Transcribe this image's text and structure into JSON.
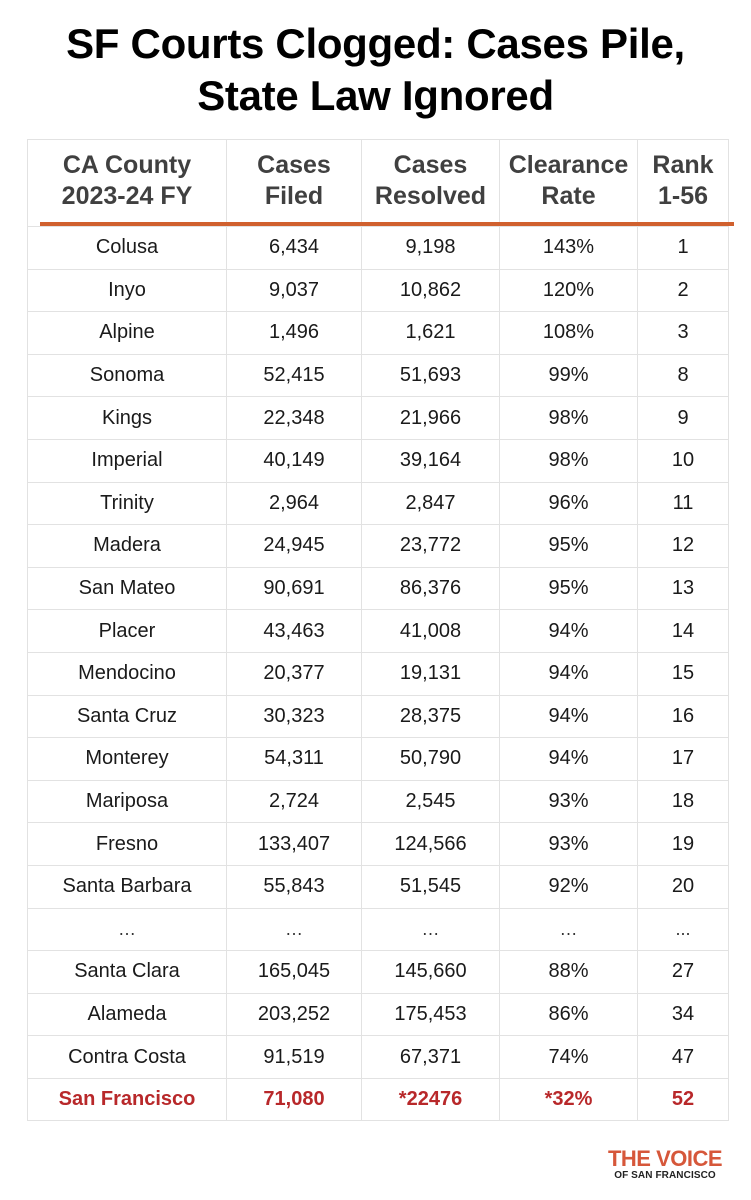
{
  "title": {
    "line1": "SF Courts Clogged: Cases Pile,",
    "line2": "State Law Ignored"
  },
  "table": {
    "headers": [
      {
        "line1": "CA County",
        "line2": "2023-24 FY"
      },
      {
        "line1": "Cases",
        "line2": "Filed"
      },
      {
        "line1": "Cases",
        "line2": "Resolved"
      },
      {
        "line1": "Clearance",
        "line2": "Rate"
      },
      {
        "line1": "Rank",
        "line2": "1-56"
      }
    ],
    "rows": [
      [
        "Colusa",
        "6,434",
        "9,198",
        "143%",
        "1"
      ],
      [
        "Inyo",
        "9,037",
        "10,862",
        "120%",
        "2"
      ],
      [
        "Alpine",
        "1,496",
        "1,621",
        "108%",
        "3"
      ],
      [
        "Sonoma",
        "52,415",
        "51,693",
        "99%",
        "8"
      ],
      [
        "Kings",
        "22,348",
        "21,966",
        "98%",
        "9"
      ],
      [
        "Imperial",
        "40,149",
        "39,164",
        "98%",
        "10"
      ],
      [
        "Trinity",
        "2,964",
        "2,847",
        "96%",
        "11"
      ],
      [
        "Madera",
        "24,945",
        "23,772",
        "95%",
        "12"
      ],
      [
        "San Mateo",
        "90,691",
        "86,376",
        "95%",
        "13"
      ],
      [
        "Placer",
        "43,463",
        "41,008",
        "94%",
        "14"
      ],
      [
        "Mendocino",
        "20,377",
        "19,131",
        "94%",
        "15"
      ],
      [
        "Santa Cruz",
        "30,323",
        "28,375",
        "94%",
        "16"
      ],
      [
        "Monterey",
        "54,311",
        "50,790",
        "94%",
        "17"
      ],
      [
        "Mariposa",
        "2,724",
        "2,545",
        "93%",
        "18"
      ],
      [
        "Fresno",
        "133,407",
        "124,566",
        "93%",
        "19"
      ],
      [
        "Santa Barbara",
        "55,843",
        "51,545",
        "92%",
        "20"
      ],
      [
        "…",
        "…",
        "…",
        "…",
        "..."
      ],
      [
        "Santa Clara",
        "165,045",
        "145,660",
        "88%",
        "27"
      ],
      [
        "Alameda",
        "203,252",
        "175,453",
        "86%",
        "34"
      ],
      [
        "Contra Costa",
        "91,519",
        "67,371",
        "74%",
        "47"
      ],
      [
        "San Francisco",
        "71,080",
        "*22476",
        "*32%",
        "52"
      ]
    ]
  },
  "logo": {
    "main": "THE VOICE",
    "sub": "OF SAN FRANCISCO"
  },
  "colors": {
    "accent_line": "#d0602e",
    "highlight_text": "#b8282a",
    "logo_orange": "#d6573a",
    "header_text": "#404040",
    "grid": "#e2e2e2"
  },
  "chart_data": {
    "type": "table",
    "title": "SF Courts Clogged: Cases Pile, State Law Ignored",
    "columns": [
      "CA County 2023-24 FY",
      "Cases Filed",
      "Cases Resolved",
      "Clearance Rate",
      "Rank 1-56"
    ],
    "rows": [
      {
        "county": "Colusa",
        "filed": 6434,
        "resolved": 9198,
        "clearance_rate_pct": 143,
        "rank": 1
      },
      {
        "county": "Inyo",
        "filed": 9037,
        "resolved": 10862,
        "clearance_rate_pct": 120,
        "rank": 2
      },
      {
        "county": "Alpine",
        "filed": 1496,
        "resolved": 1621,
        "clearance_rate_pct": 108,
        "rank": 3
      },
      {
        "county": "Sonoma",
        "filed": 52415,
        "resolved": 51693,
        "clearance_rate_pct": 99,
        "rank": 8
      },
      {
        "county": "Kings",
        "filed": 22348,
        "resolved": 21966,
        "clearance_rate_pct": 98,
        "rank": 9
      },
      {
        "county": "Imperial",
        "filed": 40149,
        "resolved": 39164,
        "clearance_rate_pct": 98,
        "rank": 10
      },
      {
        "county": "Trinity",
        "filed": 2964,
        "resolved": 2847,
        "clearance_rate_pct": 96,
        "rank": 11
      },
      {
        "county": "Madera",
        "filed": 24945,
        "resolved": 23772,
        "clearance_rate_pct": 95,
        "rank": 12
      },
      {
        "county": "San Mateo",
        "filed": 90691,
        "resolved": 86376,
        "clearance_rate_pct": 95,
        "rank": 13
      },
      {
        "county": "Placer",
        "filed": 43463,
        "resolved": 41008,
        "clearance_rate_pct": 94,
        "rank": 14
      },
      {
        "county": "Mendocino",
        "filed": 20377,
        "resolved": 19131,
        "clearance_rate_pct": 94,
        "rank": 15
      },
      {
        "county": "Santa Cruz",
        "filed": 30323,
        "resolved": 28375,
        "clearance_rate_pct": 94,
        "rank": 16
      },
      {
        "county": "Monterey",
        "filed": 54311,
        "resolved": 50790,
        "clearance_rate_pct": 94,
        "rank": 17
      },
      {
        "county": "Mariposa",
        "filed": 2724,
        "resolved": 2545,
        "clearance_rate_pct": 93,
        "rank": 18
      },
      {
        "county": "Fresno",
        "filed": 133407,
        "resolved": 124566,
        "clearance_rate_pct": 93,
        "rank": 19
      },
      {
        "county": "Santa Barbara",
        "filed": 55843,
        "resolved": 51545,
        "clearance_rate_pct": 92,
        "rank": 20
      },
      {
        "county": "...",
        "filed": null,
        "resolved": null,
        "clearance_rate_pct": null,
        "rank": null
      },
      {
        "county": "Santa Clara",
        "filed": 165045,
        "resolved": 145660,
        "clearance_rate_pct": 88,
        "rank": 27
      },
      {
        "county": "Alameda",
        "filed": 203252,
        "resolved": 175453,
        "clearance_rate_pct": 86,
        "rank": 34
      },
      {
        "county": "Contra Costa",
        "filed": 91519,
        "resolved": 67371,
        "clearance_rate_pct": 74,
        "rank": 47
      },
      {
        "county": "San Francisco",
        "filed": 71080,
        "resolved": "*22476",
        "clearance_rate_pct": "*32",
        "rank": 52,
        "highlighted": true
      }
    ]
  }
}
